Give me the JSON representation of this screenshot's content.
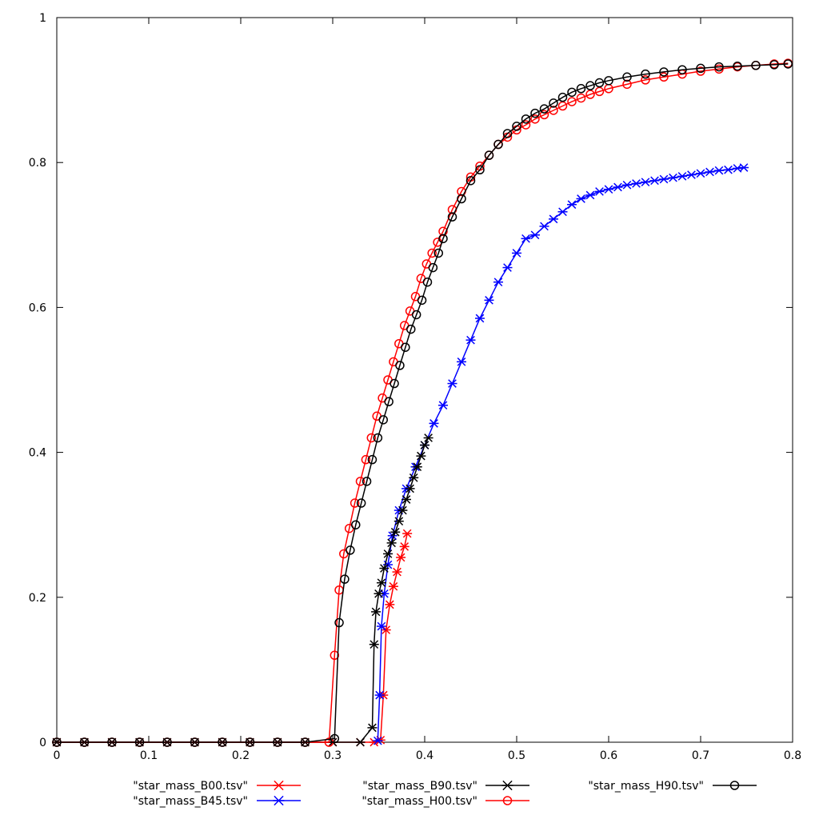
{
  "chart_data": {
    "type": "line",
    "title": "",
    "xlabel": "",
    "ylabel": "",
    "xlim": [
      0,
      0.8
    ],
    "ylim": [
      0,
      1
    ],
    "grid": false,
    "legend_position": "bottom",
    "x_ticks": [
      0,
      0.1,
      0.2,
      0.3,
      0.4,
      0.5,
      0.6,
      0.7,
      0.8
    ],
    "x_tick_labels": [
      "0",
      "0.1",
      "0.2",
      "0.3",
      "0.4",
      "0.5",
      "0.6",
      "0.7",
      "0.8"
    ],
    "y_ticks": [
      0,
      0.2,
      0.4,
      0.6,
      0.8,
      1
    ],
    "y_tick_labels": [
      "0",
      "0.2",
      "0.4",
      "0.6",
      "0.8",
      "1"
    ],
    "series": [
      {
        "name": "\"star_mass_B00.tsv\"",
        "color": "#ff0000",
        "marker": "asterisk",
        "x": [
          0,
          0.03,
          0.06,
          0.09,
          0.12,
          0.15,
          0.18,
          0.21,
          0.24,
          0.27,
          0.3,
          0.33,
          0.345,
          0.352,
          0.355,
          0.358,
          0.362,
          0.366,
          0.37,
          0.374,
          0.378,
          0.381
        ],
        "y": [
          0,
          0,
          0,
          0,
          0,
          0,
          0,
          0,
          0,
          0,
          0,
          0,
          0,
          0.003,
          0.065,
          0.155,
          0.19,
          0.215,
          0.235,
          0.255,
          0.27,
          0.288
        ]
      },
      {
        "name": "\"star_mass_B45.tsv\"",
        "color": "#0000ff",
        "marker": "asterisk",
        "x": [
          0.349,
          0.351,
          0.353,
          0.356,
          0.36,
          0.365,
          0.372,
          0.38,
          0.39,
          0.4,
          0.41,
          0.42,
          0.43,
          0.44,
          0.45,
          0.46,
          0.47,
          0.48,
          0.49,
          0.5,
          0.51,
          0.52,
          0.53,
          0.54,
          0.55,
          0.56,
          0.57,
          0.58,
          0.59,
          0.6,
          0.61,
          0.62,
          0.63,
          0.64,
          0.65,
          0.66,
          0.67,
          0.68,
          0.69,
          0.7,
          0.71,
          0.72,
          0.73,
          0.74,
          0.747
        ],
        "y": [
          0.002,
          0.065,
          0.16,
          0.205,
          0.245,
          0.285,
          0.32,
          0.35,
          0.38,
          0.41,
          0.44,
          0.465,
          0.495,
          0.525,
          0.555,
          0.585,
          0.61,
          0.635,
          0.655,
          0.675,
          0.695,
          0.7,
          0.712,
          0.722,
          0.732,
          0.742,
          0.75,
          0.755,
          0.76,
          0.763,
          0.766,
          0.769,
          0.771,
          0.773,
          0.775,
          0.777,
          0.779,
          0.781,
          0.783,
          0.785,
          0.787,
          0.789,
          0.79,
          0.792,
          0.793
        ]
      },
      {
        "name": "\"star_mass_B90.tsv\"",
        "color": "#000000",
        "marker": "asterisk",
        "x": [
          0,
          0.03,
          0.06,
          0.09,
          0.12,
          0.15,
          0.18,
          0.21,
          0.24,
          0.27,
          0.3,
          0.33,
          0.343,
          0.345,
          0.347,
          0.35,
          0.353,
          0.356,
          0.36,
          0.364,
          0.368,
          0.372,
          0.376,
          0.38,
          0.384,
          0.388,
          0.392,
          0.396,
          0.4,
          0.404
        ],
        "y": [
          0,
          0,
          0,
          0,
          0,
          0,
          0,
          0,
          0,
          0,
          0,
          0,
          0.02,
          0.135,
          0.18,
          0.205,
          0.22,
          0.24,
          0.26,
          0.275,
          0.29,
          0.305,
          0.32,
          0.335,
          0.35,
          0.365,
          0.38,
          0.395,
          0.41,
          0.42
        ]
      },
      {
        "name": "\"star_mass_H00.tsv\"",
        "color": "#ff0000",
        "marker": "circle",
        "x": [
          0,
          0.03,
          0.06,
          0.09,
          0.12,
          0.15,
          0.18,
          0.21,
          0.24,
          0.27,
          0.296,
          0.302,
          0.307,
          0.312,
          0.318,
          0.324,
          0.33,
          0.336,
          0.342,
          0.348,
          0.354,
          0.36,
          0.366,
          0.372,
          0.378,
          0.384,
          0.39,
          0.396,
          0.402,
          0.408,
          0.414,
          0.42,
          0.43,
          0.44,
          0.45,
          0.46,
          0.47,
          0.48,
          0.49,
          0.5,
          0.51,
          0.52,
          0.53,
          0.54,
          0.55,
          0.56,
          0.57,
          0.58,
          0.59,
          0.6,
          0.62,
          0.64,
          0.66,
          0.68,
          0.7,
          0.72,
          0.74,
          0.76,
          0.78,
          0.795
        ],
        "y": [
          0,
          0,
          0,
          0,
          0,
          0,
          0,
          0,
          0,
          0,
          0,
          0.12,
          0.21,
          0.26,
          0.295,
          0.33,
          0.36,
          0.39,
          0.42,
          0.45,
          0.475,
          0.5,
          0.525,
          0.55,
          0.575,
          0.595,
          0.615,
          0.64,
          0.66,
          0.675,
          0.69,
          0.705,
          0.735,
          0.76,
          0.78,
          0.795,
          0.81,
          0.825,
          0.835,
          0.845,
          0.852,
          0.86,
          0.866,
          0.872,
          0.878,
          0.884,
          0.889,
          0.894,
          0.898,
          0.902,
          0.908,
          0.914,
          0.918,
          0.922,
          0.926,
          0.929,
          0.932,
          0.934,
          0.936,
          0.937
        ]
      },
      {
        "name": "\"star_mass_H90.tsv\"",
        "color": "#000000",
        "marker": "circle",
        "x": [
          0,
          0.03,
          0.06,
          0.09,
          0.12,
          0.15,
          0.18,
          0.21,
          0.24,
          0.27,
          0.302,
          0.307,
          0.313,
          0.319,
          0.325,
          0.331,
          0.337,
          0.343,
          0.349,
          0.355,
          0.361,
          0.367,
          0.373,
          0.379,
          0.385,
          0.391,
          0.397,
          0.403,
          0.409,
          0.415,
          0.42,
          0.43,
          0.44,
          0.45,
          0.46,
          0.47,
          0.48,
          0.49,
          0.5,
          0.51,
          0.52,
          0.53,
          0.54,
          0.55,
          0.56,
          0.57,
          0.58,
          0.59,
          0.6,
          0.62,
          0.64,
          0.66,
          0.68,
          0.7,
          0.72,
          0.74,
          0.76,
          0.78,
          0.795
        ],
        "y": [
          0,
          0,
          0,
          0,
          0,
          0,
          0,
          0,
          0,
          0,
          0.005,
          0.165,
          0.225,
          0.265,
          0.3,
          0.33,
          0.36,
          0.39,
          0.42,
          0.445,
          0.47,
          0.495,
          0.52,
          0.545,
          0.57,
          0.59,
          0.61,
          0.635,
          0.655,
          0.675,
          0.695,
          0.725,
          0.75,
          0.775,
          0.79,
          0.81,
          0.825,
          0.84,
          0.85,
          0.86,
          0.868,
          0.874,
          0.882,
          0.89,
          0.897,
          0.902,
          0.906,
          0.91,
          0.913,
          0.918,
          0.922,
          0.925,
          0.928,
          0.93,
          0.932,
          0.933,
          0.934,
          0.935,
          0.936
        ]
      }
    ]
  }
}
